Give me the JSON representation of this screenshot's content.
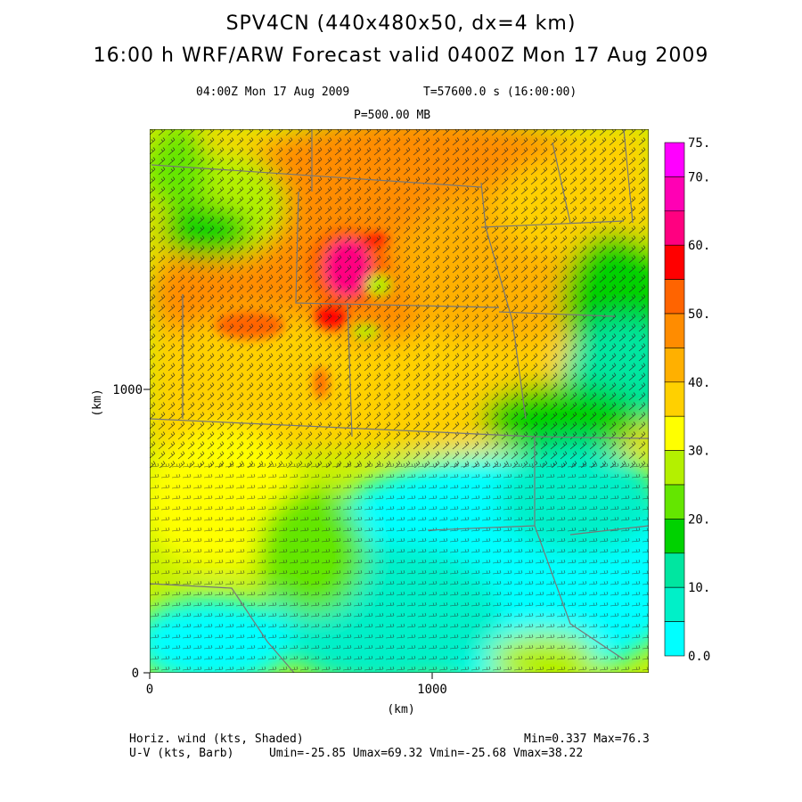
{
  "header": {
    "title_line1": "SPV4CN (440x480x50, dx=4 km)",
    "title_line2": "16:00 h WRF/ARW Forecast valid 0400Z Mon 17 Aug 2009",
    "valid_time": "04:00Z Mon 17 Aug 2009",
    "time_seconds": "T=57600.0 s (16:00:00)",
    "pressure_level": "P=500.00 MB"
  },
  "axes": {
    "x_label": "(km)",
    "y_label": "(km)",
    "x_ticks": [
      "0",
      "1000"
    ],
    "y_ticks": [
      "0",
      "1000"
    ]
  },
  "colorbar": {
    "labels": [
      "0.0",
      "10.",
      "20.",
      "30.",
      "40.",
      "50.",
      "60.",
      "70.",
      "75."
    ],
    "colors": [
      "#00ffff",
      "#00f0c8",
      "#00e6a0",
      "#00d200",
      "#64e600",
      "#b4f000",
      "#ffff00",
      "#ffd000",
      "#ffb000",
      "#ff8c00",
      "#ff6400",
      "#ff0000",
      "#ff0080",
      "#ff00b4",
      "#ff00ff"
    ]
  },
  "footer": {
    "left1": "Horiz. wind (kts, Shaded)",
    "left2": "U-V (kts, Barb)",
    "stats1": "Min=0.337 Max=76.3",
    "stats2": "Umin=-25.85 Umax=69.32 Vmin=-25.68 Vmax=38.22"
  }
}
